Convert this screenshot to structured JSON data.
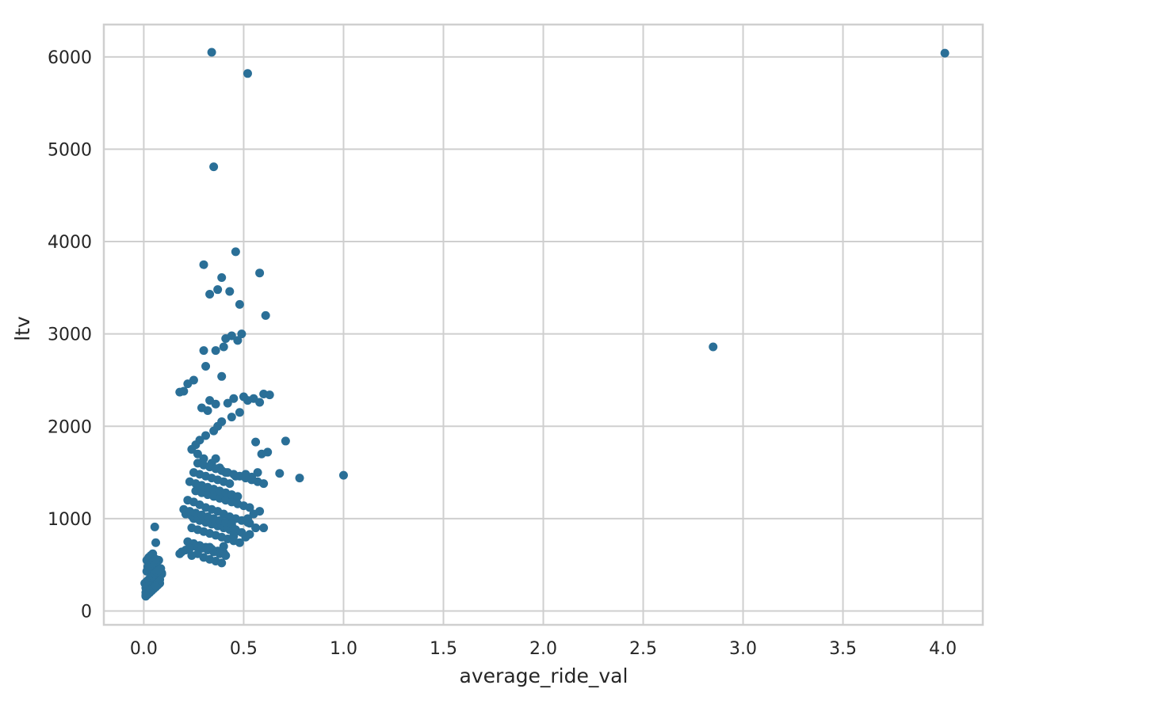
{
  "chart_data": {
    "type": "scatter",
    "title": "",
    "xlabel": "average_ride_val",
    "ylabel": "ltv",
    "xlim": [
      -0.2,
      4.2
    ],
    "ylim": [
      -150,
      6350
    ],
    "xticks": [
      0.0,
      0.5,
      1.0,
      1.5,
      2.0,
      2.5,
      3.0,
      3.5,
      4.0
    ],
    "xtick_labels": [
      "0.0",
      "0.5",
      "1.0",
      "1.5",
      "2.0",
      "2.5",
      "3.0",
      "3.5",
      "4.0"
    ],
    "yticks": [
      0,
      1000,
      2000,
      3000,
      4000,
      5000,
      6000
    ],
    "ytick_labels": [
      "0",
      "1000",
      "2000",
      "3000",
      "4000",
      "5000",
      "6000"
    ],
    "grid": true,
    "legend": "none",
    "point_color": "#2a6f97",
    "grid_color": "#cfcfcf",
    "frame_color": "#cfcfcf",
    "series": [
      {
        "x": [
          0.34,
          0.52,
          0.35,
          4.01,
          2.85,
          0.3,
          0.46,
          0.58,
          0.39,
          0.33,
          0.37,
          0.43,
          0.48,
          0.61,
          0.41,
          0.44,
          0.49,
          0.47,
          0.4,
          0.3,
          0.36,
          0.31,
          0.39,
          0.25,
          0.2,
          0.22,
          0.18,
          0.33,
          0.36,
          0.29,
          0.32,
          0.42,
          0.45,
          0.5,
          0.52,
          0.55,
          0.58,
          0.6,
          0.63,
          0.48,
          0.44,
          0.39,
          0.37,
          0.35,
          0.31,
          0.28,
          0.26,
          0.24,
          0.27,
          0.3,
          0.34,
          0.38,
          0.41,
          0.46,
          0.51,
          0.54,
          0.57,
          0.62,
          0.71,
          0.59,
          0.56,
          0.68,
          0.78,
          1.0,
          0.22,
          0.25,
          0.28,
          0.31,
          0.34,
          0.37,
          0.4,
          0.43,
          0.46,
          0.49,
          0.52,
          0.26,
          0.29,
          0.32,
          0.35,
          0.38,
          0.41,
          0.44,
          0.47,
          0.5,
          0.53,
          0.24,
          0.27,
          0.3,
          0.33,
          0.36,
          0.39,
          0.42,
          0.45,
          0.48,
          0.23,
          0.26,
          0.29,
          0.32,
          0.35,
          0.38,
          0.41,
          0.44,
          0.47,
          0.25,
          0.28,
          0.31,
          0.34,
          0.37,
          0.4,
          0.43,
          0.46,
          0.21,
          0.24,
          0.27,
          0.3,
          0.33,
          0.36,
          0.39,
          0.42,
          0.45,
          0.22,
          0.25,
          0.28,
          0.31,
          0.34,
          0.37,
          0.4,
          0.2,
          0.23,
          0.26,
          0.29,
          0.32,
          0.35,
          0.38,
          0.41,
          0.44,
          0.24,
          0.27,
          0.3,
          0.33,
          0.36,
          0.39,
          0.26,
          0.29,
          0.32,
          0.35,
          0.38,
          0.41,
          0.25,
          0.28,
          0.31,
          0.34,
          0.37,
          0.4,
          0.43,
          0.27,
          0.3,
          0.33,
          0.36,
          0.39,
          0.42,
          0.45,
          0.48,
          0.51,
          0.54,
          0.57,
          0.6,
          0.56,
          0.53,
          0.49,
          0.46,
          0.52,
          0.55,
          0.58,
          0.18,
          0.19,
          0.21,
          0.23,
          0.33,
          0.4,
          0.51,
          0.45,
          0.53,
          0.6,
          0.36,
          0.055,
          0.06,
          0.01,
          0.02,
          0.03,
          0.04,
          0.05,
          0.06,
          0.07,
          0.08,
          0.015,
          0.025,
          0.035,
          0.045,
          0.055,
          0.065,
          0.075,
          0.085,
          0.01,
          0.02,
          0.03,
          0.04,
          0.05,
          0.06,
          0.07,
          0.08,
          0.09,
          0.015,
          0.025,
          0.035,
          0.045,
          0.055,
          0.065,
          0.075,
          0.01,
          0.02,
          0.03,
          0.04,
          0.05,
          0.06,
          0.07,
          0.08,
          0.015,
          0.025,
          0.035,
          0.045,
          0.055,
          0.065,
          0.01,
          0.02,
          0.03,
          0.04,
          0.05,
          0.06,
          0.005,
          0.015,
          0.025,
          0.035,
          0.045,
          0.02,
          0.03,
          0.04,
          0.05,
          0.06,
          0.07,
          0.08,
          0.09,
          0.035,
          0.045,
          0.055,
          0.065,
          0.075
        ],
        "y": [
          6050,
          5820,
          4810,
          6040,
          2860,
          3750,
          3890,
          3660,
          3610,
          3430,
          3480,
          3460,
          3320,
          3200,
          2950,
          2980,
          3000,
          2930,
          2860,
          2820,
          2820,
          2650,
          2540,
          2500,
          2380,
          2460,
          2370,
          2280,
          2240,
          2200,
          2170,
          2250,
          2300,
          2320,
          2280,
          2300,
          2260,
          2350,
          2340,
          2150,
          2100,
          2050,
          2000,
          1950,
          1900,
          1850,
          1800,
          1750,
          1700,
          1650,
          1600,
          1550,
          1500,
          1460,
          1480,
          1450,
          1500,
          1720,
          1840,
          1700,
          1830,
          1490,
          1440,
          1470,
          1200,
          1180,
          1150,
          1120,
          1100,
          1080,
          1050,
          1020,
          1000,
          980,
          960,
          1300,
          1280,
          1260,
          1240,
          1220,
          1200,
          1180,
          1160,
          1140,
          1120,
          900,
          880,
          860,
          840,
          820,
          800,
          780,
          760,
          740,
          1400,
          1380,
          1360,
          1340,
          1320,
          1300,
          1280,
          1260,
          1240,
          1000,
          980,
          960,
          940,
          920,
          900,
          880,
          860,
          1050,
          1030,
          1010,
          990,
          970,
          950,
          930,
          910,
          890,
          750,
          730,
          710,
          690,
          670,
          650,
          630,
          1100,
          1080,
          1060,
          1040,
          1020,
          1000,
          980,
          960,
          940,
          600,
          620,
          580,
          560,
          540,
          520,
          700,
          680,
          660,
          640,
          620,
          600,
          1500,
          1480,
          1460,
          1440,
          1420,
          1400,
          1380,
          1600,
          1580,
          1560,
          1540,
          1520,
          1500,
          1480,
          1460,
          1440,
          1420,
          1400,
          1380,
          900,
          950,
          850,
          880,
          1000,
          1050,
          1080,
          620,
          640,
          660,
          680,
          690,
          700,
          800,
          810,
          830,
          900,
          1650,
          910,
          740,
          160,
          180,
          200,
          220,
          240,
          260,
          280,
          300,
          320,
          340,
          360,
          380,
          400,
          420,
          440,
          460,
          250,
          270,
          290,
          310,
          330,
          350,
          370,
          390,
          410,
          430,
          450,
          470,
          490,
          510,
          530,
          550,
          200,
          220,
          240,
          260,
          280,
          300,
          320,
          340,
          550,
          580,
          600,
          620,
          560,
          540,
          170,
          190,
          210,
          230,
          250,
          270,
          300,
          320,
          340,
          360,
          380,
          480,
          500,
          520,
          540,
          560,
          440,
          420,
          400,
          360,
          380,
          400,
          420,
          440
        ]
      }
    ]
  }
}
